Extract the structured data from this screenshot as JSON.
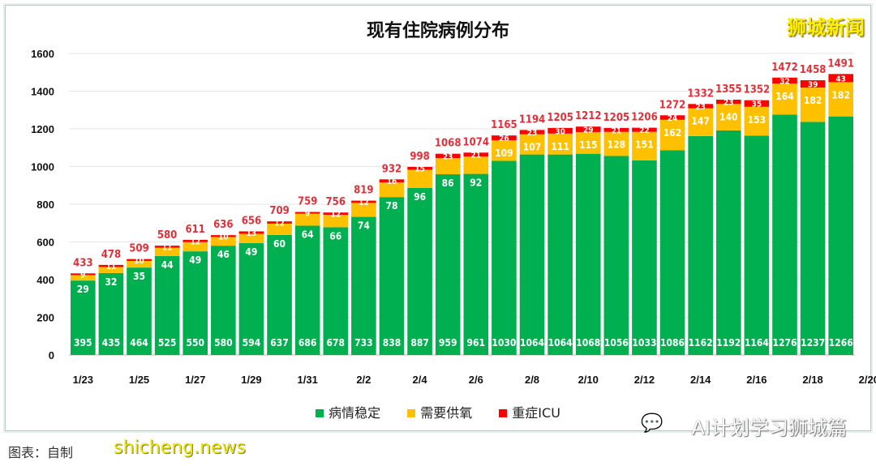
{
  "brand": "狮城新闻",
  "footer_note": "图表：自制",
  "site_watermark": "shicheng.news",
  "wechat_watermark": "AI计划学习狮城篇",
  "wechat_icon": "wechat-icon",
  "chart_data": {
    "type": "bar",
    "stacked": true,
    "title": "现有住院病例分布",
    "categories": [
      "1/23",
      "1/24",
      "1/25",
      "1/26",
      "1/27",
      "1/28",
      "1/29",
      "1/30",
      "1/31",
      "2/1",
      "2/2",
      "2/3",
      "2/4",
      "2/5",
      "2/6",
      "2/7",
      "2/8",
      "2/9",
      "2/10",
      "2/11",
      "2/12",
      "2/13",
      "2/14",
      "2/15",
      "2/16",
      "2/17",
      "2/18",
      "2/19"
    ],
    "x_tick_labels": [
      "1/23",
      "1/25",
      "1/27",
      "1/29",
      "1/31",
      "2/2",
      "2/4",
      "2/6",
      "2/8",
      "2/10",
      "2/12",
      "2/14",
      "2/16",
      "2/18",
      "2/20"
    ],
    "series": [
      {
        "name": "病情稳定",
        "color": "#00b050",
        "values": [
          395,
          435,
          464,
          525,
          550,
          580,
          594,
          637,
          686,
          678,
          733,
          838,
          887,
          959,
          961,
          1030,
          1064,
          1064,
          1068,
          1056,
          1033,
          1086,
          1162,
          1192,
          1164,
          1276,
          1237,
          1266
        ]
      },
      {
        "name": "需要供氧",
        "color": "#ffc000",
        "values": [
          29,
          32,
          35,
          44,
          49,
          46,
          49,
          60,
          64,
          66,
          74,
          78,
          96,
          86,
          92,
          109,
          107,
          111,
          115,
          128,
          151,
          162,
          147,
          140,
          153,
          164,
          182,
          182
        ]
      },
      {
        "name": "重症ICU",
        "color": "#ff0000",
        "values": [
          9,
          11,
          10,
          11,
          12,
          10,
          13,
          12,
          9,
          12,
          12,
          16,
          15,
          23,
          21,
          26,
          23,
          30,
          29,
          21,
          22,
          24,
          23,
          23,
          35,
          32,
          39,
          43
        ]
      }
    ],
    "totals": [
      433,
      478,
      509,
      580,
      611,
      636,
      656,
      709,
      759,
      756,
      819,
      932,
      998,
      1068,
      1074,
      1165,
      1194,
      1205,
      1212,
      1205,
      1206,
      1272,
      1332,
      1355,
      1352,
      1472,
      1458,
      1491
    ],
    "ylim": [
      0,
      1600
    ],
    "y_ticks": [
      0,
      200,
      400,
      600,
      800,
      1000,
      1200,
      1400,
      1600
    ],
    "grid": true,
    "legend": "bottom",
    "total_label_color": "#e0303a"
  }
}
